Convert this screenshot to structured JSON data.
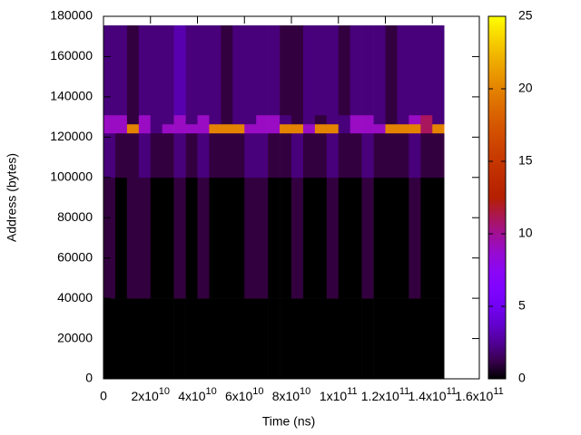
{
  "chart_data": {
    "type": "heatmap",
    "x_label": "Time (ns)",
    "y_label": "Address (bytes)",
    "xbins": [
      0,
      5000000000.0,
      10000000000.0,
      15000000000.0,
      20000000000.0,
      25000000000.0,
      30000000000.0,
      35000000000.0,
      40000000000.0,
      45000000000.0,
      50000000000.0,
      55000000000.0,
      60000000000.0,
      65000000000.0,
      70000000000.0,
      75000000000.0,
      80000000000.0,
      85000000000.0,
      90000000000.0,
      95000000000.0,
      100000000000.0,
      105000000000.0,
      110000000000.0,
      115000000000.0,
      120000000000.0,
      125000000000.0,
      130000000000.0,
      135000000000.0,
      140000000000.0,
      145000000000.0
    ],
    "ybins": [
      0,
      40000,
      100000,
      122000,
      126500,
      131000,
      175500
    ],
    "values": [
      [
        0,
        0,
        0,
        0,
        0,
        0,
        0,
        0,
        0,
        0,
        0,
        0,
        0,
        0,
        0,
        0,
        0,
        0,
        0,
        0,
        0,
        0,
        0,
        0,
        0,
        0,
        0,
        0,
        0
      ],
      [
        1,
        0,
        1,
        1,
        0,
        0,
        1,
        0,
        1,
        0,
        0,
        0,
        1,
        1,
        0,
        0,
        1,
        0,
        0,
        1,
        0,
        0,
        1,
        0,
        0,
        0,
        1,
        0,
        0
      ],
      [
        2,
        1,
        1,
        2,
        1,
        1,
        2,
        1,
        2,
        1,
        1,
        1,
        2,
        2,
        1,
        1,
        2,
        1,
        1,
        2,
        1,
        1,
        2,
        1,
        1,
        1,
        2,
        1,
        1
      ],
      [
        9,
        9,
        20,
        9,
        2,
        9,
        9,
        9,
        9,
        20,
        20,
        20,
        9,
        9,
        9,
        20,
        20,
        9,
        20,
        20,
        2,
        9,
        9,
        9,
        20,
        20,
        20,
        11,
        20
      ],
      [
        9,
        9,
        1,
        9,
        2,
        2,
        9,
        2,
        9,
        2,
        1,
        2,
        2,
        9,
        9,
        2,
        1,
        2,
        1,
        2,
        2,
        9,
        9,
        2,
        1,
        2,
        9,
        11,
        2
      ],
      [
        2,
        2,
        1,
        2,
        2,
        2,
        3,
        2,
        2,
        2,
        1,
        2,
        2,
        2,
        2,
        1,
        1,
        2,
        2,
        2,
        1,
        2,
        2,
        2,
        1,
        2,
        2,
        2,
        2
      ]
    ],
    "xlim": [
      0,
      160000000000.0
    ],
    "ylim": [
      0,
      180000
    ],
    "clim": [
      0,
      25
    ],
    "xticks": [
      0,
      {
        "value": 20000000000.0,
        "label": "2x10^10"
      },
      {
        "value": 40000000000.0,
        "label": "4x10^10"
      },
      {
        "value": 60000000000.0,
        "label": "6x10^10"
      },
      {
        "value": 80000000000.0,
        "label": "8x10^10"
      },
      {
        "value": 100000000000.0,
        "label": "1x10^11"
      },
      {
        "value": 120000000000.0,
        "label": "1.2x10^11"
      },
      {
        "value": 140000000000.0,
        "label": "1.4x10^11"
      },
      {
        "value": 160000000000.0,
        "label": "1.6x10^11"
      }
    ],
    "yticks": [
      0,
      20000,
      40000,
      60000,
      80000,
      100000,
      120000,
      140000,
      160000,
      180000
    ],
    "cticks": [
      0,
      5,
      10,
      15,
      20,
      25
    ]
  }
}
